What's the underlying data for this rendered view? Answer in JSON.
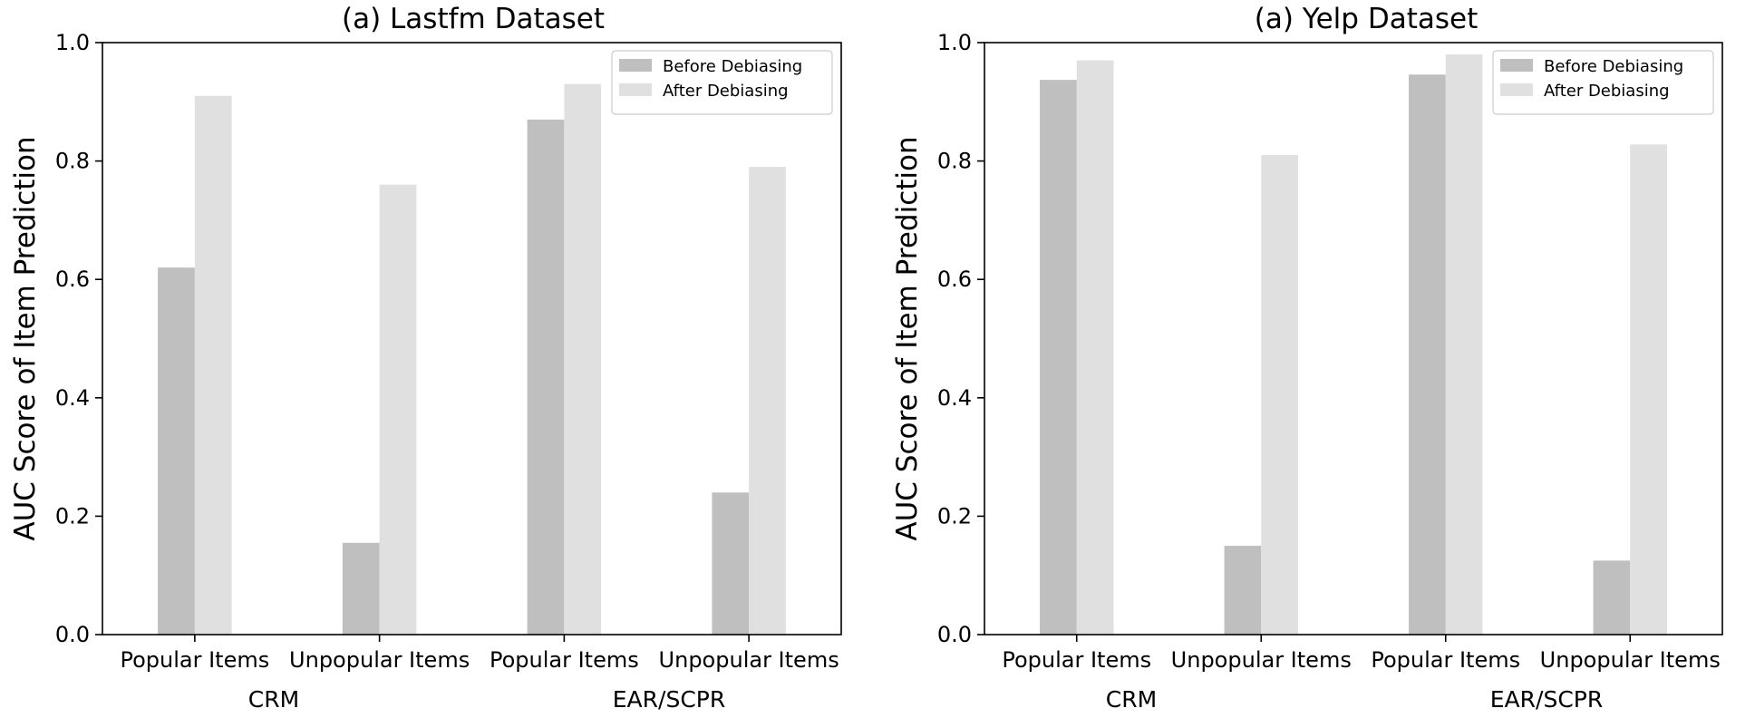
{
  "chart_data": [
    {
      "type": "bar",
      "title": "(a) Lastfm Dataset",
      "ylabel": "AUC Score of Item Prediction",
      "xlabel": "",
      "ylim": [
        0,
        1.0
      ],
      "yticks": [
        "0.0",
        "0.2",
        "0.4",
        "0.6",
        "0.8",
        "1.0"
      ],
      "categories": [
        "Popular Items",
        "Unpopular Items",
        "Popular Items",
        "Unpopular Items"
      ],
      "groups": [
        "CRM",
        "EAR/SCPR"
      ],
      "legend_position": "top-right",
      "grid": false,
      "series": [
        {
          "name": "Before Debiasing",
          "color": "#bfbfbf",
          "values": [
            0.62,
            0.155,
            0.87,
            0.24
          ]
        },
        {
          "name": "After Debiasing",
          "color": "#e0e0e0",
          "values": [
            0.91,
            0.76,
            0.93,
            0.79
          ]
        }
      ]
    },
    {
      "type": "bar",
      "title": "(a) Yelp Dataset",
      "ylabel": "AUC Score of Item Prediction",
      "xlabel": "",
      "ylim": [
        0,
        1.0
      ],
      "yticks": [
        "0.0",
        "0.2",
        "0.4",
        "0.6",
        "0.8",
        "1.0"
      ],
      "categories": [
        "Popular Items",
        "Unpopular Items",
        "Popular Items",
        "Unpopular Items"
      ],
      "groups": [
        "CRM",
        "EAR/SCPR"
      ],
      "legend_position": "top-right",
      "grid": false,
      "series": [
        {
          "name": "Before Debiasing",
          "color": "#bfbfbf",
          "values": [
            0.937,
            0.15,
            0.946,
            0.125
          ]
        },
        {
          "name": "After Debiasing",
          "color": "#e0e0e0",
          "values": [
            0.97,
            0.81,
            0.98,
            0.828
          ]
        }
      ]
    }
  ]
}
